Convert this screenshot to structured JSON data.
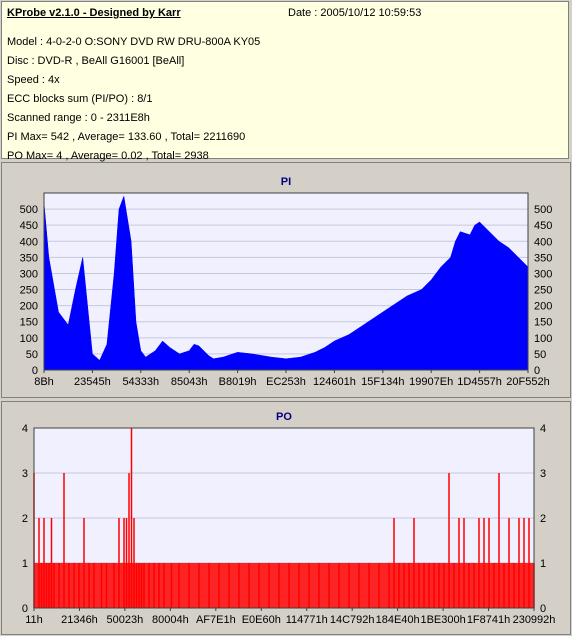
{
  "info": {
    "app_title": "KProbe v2.1.0 - Designed by Karr",
    "date": "Date : 2005/10/12 10:59:53",
    "lines": [
      "Model : 4-0-2-0 O:SONY    DVD RW DRU-800A  KY05",
      "Disc : DVD-R , BeAll G16001 [BeAll]",
      "Speed : 4x",
      "ECC blocks sum (PI/PO) : 8/1",
      "Scanned range : 0 - 2311E8h",
      "PI Max= 542 , Average= 133.60 , Total= 2211690",
      "PO Max= 4 , Average= 0.02 , Total= 2938"
    ]
  },
  "colors": {
    "pi": "#0000ff",
    "po": "#ff0000",
    "plot_bg": "#f0f0ff",
    "title": "#000080"
  },
  "chart_data": [
    {
      "type": "area",
      "title": "PI",
      "ylim": [
        0,
        550
      ],
      "yticks": [
        0,
        50,
        100,
        150,
        200,
        250,
        300,
        350,
        400,
        450,
        500
      ],
      "xtick_labels": [
        "8Bh",
        "23545h",
        "54333h",
        "85043h",
        "B8019h",
        "EC253h",
        "124601h",
        "15F134h",
        "19907Eh",
        "1D4557h",
        "20F552h"
      ],
      "xlim_labels": [
        "0h",
        "2311E8h"
      ],
      "x_frac": [
        0,
        0.01,
        0.03,
        0.05,
        0.065,
        0.08,
        0.09,
        0.1,
        0.115,
        0.13,
        0.145,
        0.155,
        0.165,
        0.18,
        0.19,
        0.2,
        0.21,
        0.22,
        0.23,
        0.245,
        0.26,
        0.28,
        0.3,
        0.31,
        0.32,
        0.34,
        0.35,
        0.37,
        0.4,
        0.43,
        0.45,
        0.47,
        0.5,
        0.53,
        0.56,
        0.58,
        0.6,
        0.63,
        0.66,
        0.69,
        0.72,
        0.75,
        0.78,
        0.8,
        0.82,
        0.84,
        0.85,
        0.86,
        0.88,
        0.89,
        0.9,
        0.92,
        0.94,
        0.96,
        0.98,
        1.0
      ],
      "values": [
        520,
        350,
        180,
        140,
        250,
        350,
        200,
        50,
        30,
        80,
        300,
        500,
        540,
        400,
        150,
        60,
        40,
        50,
        60,
        90,
        70,
        50,
        60,
        80,
        75,
        45,
        35,
        40,
        55,
        50,
        45,
        40,
        35,
        40,
        55,
        70,
        90,
        110,
        140,
        170,
        200,
        230,
        250,
        280,
        320,
        350,
        400,
        430,
        420,
        450,
        460,
        430,
        400,
        380,
        350,
        320
      ]
    },
    {
      "type": "bar",
      "title": "PO",
      "ylim": [
        0,
        4
      ],
      "yticks": [
        0,
        1,
        2,
        3,
        4
      ],
      "xtick_labels": [
        "11h",
        "21346h",
        "50023h",
        "80004h",
        "AF7E1h",
        "E0E60h",
        "114771h",
        "14C792h",
        "184E40h",
        "1BE300h",
        "1F8741h",
        "230992h"
      ],
      "x_frac": [
        0.0,
        0.01,
        0.015,
        0.02,
        0.025,
        0.03,
        0.035,
        0.04,
        0.05,
        0.06,
        0.07,
        0.08,
        0.09,
        0.1,
        0.11,
        0.12,
        0.135,
        0.145,
        0.16,
        0.17,
        0.18,
        0.185,
        0.19,
        0.195,
        0.2,
        0.205,
        0.21,
        0.215,
        0.22,
        0.23,
        0.24,
        0.25,
        0.26,
        0.275,
        0.29,
        0.31,
        0.33,
        0.35,
        0.37,
        0.39,
        0.41,
        0.43,
        0.45,
        0.47,
        0.49,
        0.51,
        0.53,
        0.55,
        0.57,
        0.59,
        0.61,
        0.63,
        0.65,
        0.67,
        0.69,
        0.71,
        0.72,
        0.73,
        0.74,
        0.75,
        0.76,
        0.77,
        0.78,
        0.79,
        0.8,
        0.81,
        0.82,
        0.83,
        0.84,
        0.85,
        0.86,
        0.87,
        0.88,
        0.89,
        0.9,
        0.91,
        0.92,
        0.93,
        0.94,
        0.95,
        0.96,
        0.97,
        0.98,
        0.99,
        1.0
      ],
      "values": [
        3,
        2,
        1,
        2,
        1,
        1,
        2,
        1,
        1,
        3,
        1,
        1,
        1,
        2,
        1,
        1,
        1,
        1,
        1,
        2,
        2,
        2,
        3,
        4,
        2,
        1,
        1,
        1,
        1,
        1,
        1,
        1,
        1,
        1,
        1,
        1,
        1,
        1,
        1,
        1,
        1,
        1,
        1,
        1,
        1,
        1,
        1,
        1,
        1,
        1,
        1,
        1,
        1,
        1,
        1,
        1,
        2,
        1,
        1,
        1,
        2,
        1,
        1,
        1,
        1,
        1,
        1,
        3,
        1,
        2,
        2,
        1,
        1,
        2,
        2,
        2,
        1,
        3,
        1,
        2,
        1,
        2,
        2,
        2,
        1
      ]
    }
  ]
}
